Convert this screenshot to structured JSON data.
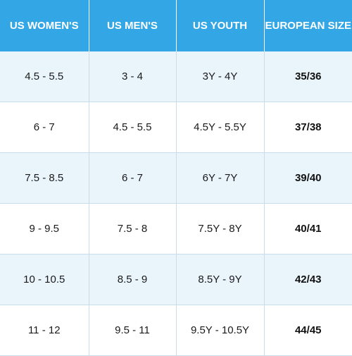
{
  "table": {
    "headers": [
      "US WOMEN'S",
      "US MEN'S",
      "US YOUTH",
      "EUROPEAN SIZE"
    ],
    "rows": [
      [
        "4.5 - 5.5",
        "3 - 4",
        "3Y - 4Y",
        "35/36"
      ],
      [
        "6 - 7",
        "4.5 - 5.5",
        "4.5Y - 5.5Y",
        "37/38"
      ],
      [
        "7.5 - 8.5",
        "6 - 7",
        "6Y - 7Y",
        "39/40"
      ],
      [
        "9 - 9.5",
        "7.5 - 8",
        "7.5Y - 8Y",
        "40/41"
      ],
      [
        "10 - 10.5",
        "8.5 - 9",
        "8.5Y - 9Y",
        "42/43"
      ],
      [
        "11 - 12",
        "9.5 - 11",
        "9.5Y - 10.5Y",
        "44/45"
      ]
    ]
  },
  "colors": {
    "header_background": "#33a6e6",
    "header_text": "#ffffff",
    "row_tint": "#e9f4fb",
    "row_plain": "#ffffff",
    "grid_line": "#c9dde8"
  }
}
